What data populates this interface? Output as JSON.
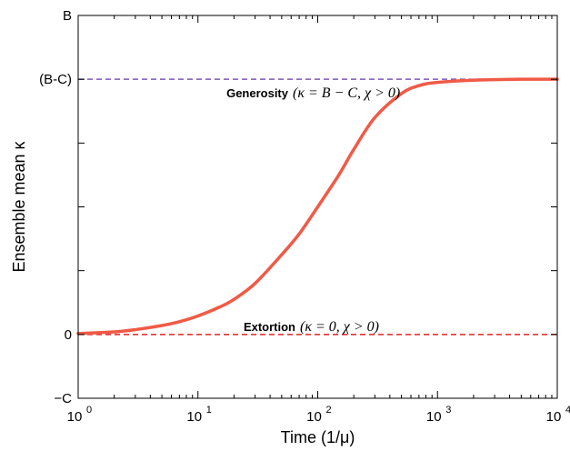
{
  "chart_data": {
    "type": "line",
    "xlabel": "Time (1/μ)",
    "ylabel": "Ensemble mean κ",
    "x_scale": "log",
    "xlim": [
      1,
      10000
    ],
    "x_ticks": [
      {
        "value": 1,
        "base": "10",
        "exp": "0"
      },
      {
        "value": 10,
        "base": "10",
        "exp": "1"
      },
      {
        "value": 100,
        "base": "10",
        "exp": "2"
      },
      {
        "value": 1000,
        "base": "10",
        "exp": "3"
      },
      {
        "value": 10000,
        "base": "10",
        "exp": "4"
      }
    ],
    "y_ticks": [
      {
        "value": 1,
        "label": "B"
      },
      {
        "value": 0.8,
        "label": "(B-C)"
      },
      {
        "value": 0,
        "label": "0"
      },
      {
        "value": -0.2,
        "label": "−C"
      }
    ],
    "ylim": [
      -0.2,
      1
    ],
    "grid": false,
    "series": [
      {
        "color": "#f05a46",
        "x": [
          1,
          2,
          3,
          5,
          7,
          10,
          15,
          20,
          30,
          50,
          70,
          100,
          150,
          200,
          300,
          500,
          700,
          1000,
          2000,
          5000,
          10000
        ],
        "y": [
          0.003,
          0.008,
          0.015,
          0.028,
          0.04,
          0.058,
          0.085,
          0.11,
          0.16,
          0.25,
          0.315,
          0.4,
          0.5,
          0.58,
          0.68,
          0.755,
          0.78,
          0.79,
          0.797,
          0.8,
          0.8
        ]
      }
    ],
    "reference_lines": [
      {
        "y": 0.8,
        "color": "#7e57b4",
        "style": "dashed"
      },
      {
        "y": 0,
        "color": "#e02020",
        "style": "dashed"
      }
    ],
    "annotations": [
      {
        "id": "generosity",
        "label": "Generosity",
        "math": "(κ = B − C,  χ > 0)"
      },
      {
        "id": "extortion",
        "label": "Extortion",
        "math": "(κ = 0,  χ > 0)"
      }
    ]
  }
}
